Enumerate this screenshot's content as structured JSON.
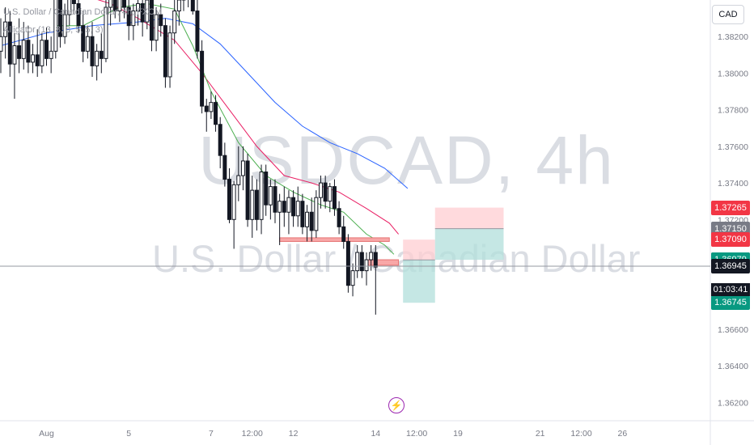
{
  "header": {
    "symbol_title": "U.S. Dollar / Canadian Dollar, 4h, FXCM",
    "indicator": "Alligator (13, 8, 8, 5, 5, 3)"
  },
  "watermark": {
    "ticker": "USDCAD, 4h",
    "name": "U.S. Dollar / Canadian Dollar"
  },
  "currency_badge": "CAD",
  "price_tags": [
    {
      "label": "1.37265",
      "color": "#f23645"
    },
    {
      "label": "1.37150",
      "color": "#787b86"
    },
    {
      "label": "1.37090",
      "color": "#f23645"
    },
    {
      "label": "1.36980",
      "color": "#787b86"
    },
    {
      "label": "1.36979",
      "color": "#089981"
    },
    {
      "label": "1.36945",
      "color": "#131722"
    },
    {
      "label": "1.36745",
      "color": "#089981"
    }
  ],
  "countdown": "01:03:41",
  "colors": {
    "candle": "#131722",
    "jaw": "#2962ff",
    "teeth": "#e91e63",
    "lips": "#4caf50",
    "zone_stroke": "#e57373",
    "zone_fill": "#f8a7a7",
    "profit_zone": "#b2dfdb",
    "loss_zone": "#ffcdd2",
    "event": "#9c27b0"
  },
  "chart_data": {
    "type": "candlestick",
    "symbol": "USDCAD",
    "timeframe": "4h",
    "y_ticks": [
      "1.38200",
      "1.38000",
      "1.37800",
      "1.37600",
      "1.37400",
      "1.37200",
      "1.36800",
      "1.36600",
      "1.36400",
      "1.36200"
    ],
    "ylim": [
      1.361,
      1.384
    ],
    "x_ticks": [
      {
        "label": "Aug",
        "i": 10
      },
      {
        "label": "5",
        "i": 28
      },
      {
        "label": "7",
        "i": 46
      },
      {
        "label": "12:00",
        "i": 55
      },
      {
        "label": "12",
        "i": 64
      },
      {
        "label": "14",
        "i": 82
      },
      {
        "label": "12:00",
        "i": 91
      },
      {
        "label": "19",
        "i": 100
      },
      {
        "label": "21",
        "i": 118
      },
      {
        "label": "12:00",
        "i": 127
      },
      {
        "label": "26",
        "i": 136
      }
    ],
    "candles": [
      [
        1.3812,
        1.383,
        1.38,
        1.382
      ],
      [
        1.382,
        1.3836,
        1.3808,
        1.3828
      ],
      [
        1.3828,
        1.3834,
        1.3798,
        1.3805
      ],
      [
        1.3805,
        1.3822,
        1.3786,
        1.3815
      ],
      [
        1.3815,
        1.383,
        1.38,
        1.3808
      ],
      [
        1.3808,
        1.3828,
        1.3802,
        1.3818
      ],
      [
        1.3818,
        1.3826,
        1.38,
        1.3806
      ],
      [
        1.3806,
        1.3816,
        1.38,
        1.381
      ],
      [
        1.381,
        1.3824,
        1.3798,
        1.3804
      ],
      [
        1.3804,
        1.3822,
        1.38,
        1.3818
      ],
      [
        1.3818,
        1.3825,
        1.3804,
        1.3808
      ],
      [
        1.3808,
        1.382,
        1.38,
        1.3812
      ],
      [
        1.3812,
        1.385,
        1.3808,
        1.3846
      ],
      [
        1.3846,
        1.3852,
        1.3814,
        1.382
      ],
      [
        1.382,
        1.3838,
        1.3816,
        1.3832
      ],
      [
        1.3832,
        1.385,
        1.3826,
        1.3842
      ],
      [
        1.3842,
        1.3848,
        1.3832,
        1.3838
      ],
      [
        1.3838,
        1.3846,
        1.3822,
        1.3826
      ],
      [
        1.3826,
        1.3834,
        1.3806,
        1.3812
      ],
      [
        1.3812,
        1.3826,
        1.3808,
        1.382
      ],
      [
        1.382,
        1.3828,
        1.3798,
        1.3804
      ],
      [
        1.3804,
        1.3816,
        1.3796,
        1.3812
      ],
      [
        1.3812,
        1.3822,
        1.38,
        1.3808
      ],
      [
        1.3808,
        1.384,
        1.3806,
        1.3836
      ],
      [
        1.3836,
        1.385,
        1.3826,
        1.3844
      ],
      [
        1.3844,
        1.385,
        1.383,
        1.3834
      ],
      [
        1.3834,
        1.3846,
        1.3828,
        1.3842
      ],
      [
        1.3842,
        1.3848,
        1.383,
        1.3836
      ],
      [
        1.3836,
        1.3842,
        1.3818,
        1.3826
      ],
      [
        1.3826,
        1.3838,
        1.3818,
        1.3834
      ],
      [
        1.3834,
        1.3846,
        1.3826,
        1.3838
      ],
      [
        1.3838,
        1.3842,
        1.382,
        1.3828
      ],
      [
        1.3828,
        1.3842,
        1.3824,
        1.384
      ],
      [
        1.384,
        1.3844,
        1.3812,
        1.3818
      ],
      [
        1.3818,
        1.3836,
        1.3812,
        1.3832
      ],
      [
        1.3832,
        1.3838,
        1.382,
        1.3826
      ],
      [
        1.3826,
        1.383,
        1.3792,
        1.3798
      ],
      [
        1.3798,
        1.3826,
        1.3792,
        1.3822
      ],
      [
        1.3822,
        1.384,
        1.3816,
        1.3834
      ],
      [
        1.3834,
        1.3846,
        1.3826,
        1.384
      ],
      [
        1.384,
        1.385,
        1.3834,
        1.3846
      ],
      [
        1.3846,
        1.3852,
        1.3836,
        1.3842
      ],
      [
        1.3842,
        1.385,
        1.3832,
        1.3834
      ],
      [
        1.3834,
        1.384,
        1.3808,
        1.3812
      ],
      [
        1.3812,
        1.3818,
        1.3778,
        1.3782
      ],
      [
        1.3782,
        1.3786,
        1.3768,
        1.3779
      ],
      [
        1.3779,
        1.379,
        1.3775,
        1.3784
      ],
      [
        1.3784,
        1.3788,
        1.3768,
        1.3772
      ],
      [
        1.3772,
        1.3776,
        1.3748,
        1.3755
      ],
      [
        1.3755,
        1.3762,
        1.3738,
        1.3742
      ],
      [
        1.3742,
        1.3748,
        1.3718,
        1.372
      ],
      [
        1.372,
        1.3741,
        1.3704,
        1.3739
      ],
      [
        1.3739,
        1.376,
        1.373,
        1.3744
      ],
      [
        1.3744,
        1.376,
        1.3736,
        1.3752
      ],
      [
        1.3752,
        1.3756,
        1.3716,
        1.372
      ],
      [
        1.372,
        1.3744,
        1.371,
        1.3736
      ],
      [
        1.3736,
        1.3742,
        1.3714,
        1.372
      ],
      [
        1.372,
        1.375,
        1.3712,
        1.3746
      ],
      [
        1.3746,
        1.375,
        1.3722,
        1.3728
      ],
      [
        1.3728,
        1.3742,
        1.372,
        1.3738
      ],
      [
        1.3738,
        1.3742,
        1.3718,
        1.3724
      ],
      [
        1.3724,
        1.3734,
        1.3706,
        1.373
      ],
      [
        1.373,
        1.3738,
        1.3716,
        1.3724
      ],
      [
        1.3724,
        1.3736,
        1.3712,
        1.3732
      ],
      [
        1.3732,
        1.3736,
        1.3716,
        1.3722
      ],
      [
        1.3722,
        1.3738,
        1.3716,
        1.373
      ],
      [
        1.373,
        1.3734,
        1.3712,
        1.3716
      ],
      [
        1.3716,
        1.3728,
        1.3708,
        1.3724
      ],
      [
        1.3724,
        1.3732,
        1.3708,
        1.3714
      ],
      [
        1.3714,
        1.3736,
        1.371,
        1.3732
      ],
      [
        1.3732,
        1.3744,
        1.3726,
        1.374
      ],
      [
        1.374,
        1.3744,
        1.3726,
        1.373
      ],
      [
        1.373,
        1.374,
        1.3724,
        1.3738
      ],
      [
        1.3738,
        1.3742,
        1.3722,
        1.3726
      ],
      [
        1.3726,
        1.373,
        1.3712,
        1.3716
      ],
      [
        1.3716,
        1.3722,
        1.3704,
        1.3708
      ],
      [
        1.3708,
        1.3712,
        1.368,
        1.3684
      ],
      [
        1.3684,
        1.3696,
        1.3678,
        1.3692
      ],
      [
        1.3692,
        1.3706,
        1.3688,
        1.3702
      ],
      [
        1.3702,
        1.3706,
        1.3688,
        1.3692
      ],
      [
        1.3692,
        1.3702,
        1.3684,
        1.3698
      ],
      [
        1.3698,
        1.3706,
        1.3692,
        1.3702
      ],
      [
        1.3702,
        1.3706,
        1.3668,
        1.3694
      ]
    ],
    "alligator": {
      "jaw": [
        [
          0,
          1.3815
        ],
        [
          10,
          1.3822
        ],
        [
          20,
          1.3826
        ],
        [
          30,
          1.3828
        ],
        [
          36,
          1.383
        ],
        [
          42,
          1.3827
        ],
        [
          48,
          1.3816
        ],
        [
          54,
          1.38
        ],
        [
          60,
          1.3784
        ],
        [
          66,
          1.3771
        ],
        [
          72,
          1.3762
        ],
        [
          78,
          1.3756
        ],
        [
          84,
          1.3748
        ],
        [
          89,
          1.3737
        ]
      ],
      "teeth": [
        [
          15,
          1.3845
        ],
        [
          24,
          1.3838
        ],
        [
          30,
          1.383
        ],
        [
          38,
          1.3818
        ],
        [
          44,
          1.38
        ],
        [
          50,
          1.378
        ],
        [
          56,
          1.376
        ],
        [
          62,
          1.3744
        ],
        [
          68,
          1.374
        ],
        [
          74,
          1.3735
        ],
        [
          80,
          1.3726
        ],
        [
          85,
          1.3718
        ],
        [
          87,
          1.3712
        ]
      ],
      "lips": [
        [
          12,
          1.3826
        ],
        [
          18,
          1.3826
        ],
        [
          26,
          1.3836
        ],
        [
          32,
          1.3838
        ],
        [
          38,
          1.3835
        ],
        [
          42,
          1.3815
        ],
        [
          46,
          1.379
        ],
        [
          52,
          1.3762
        ],
        [
          58,
          1.3744
        ],
        [
          64,
          1.3735
        ],
        [
          70,
          1.3728
        ],
        [
          75,
          1.3724
        ],
        [
          80,
          1.3712
        ],
        [
          84,
          1.3706
        ],
        [
          86,
          1.3701
        ]
      ]
    },
    "levels": [
      {
        "type": "zone",
        "i_start": 61,
        "i_end": 85,
        "y_top": 1.371,
        "y_bottom": 1.3708
      },
      {
        "type": "zone",
        "i_start": 80,
        "i_end": 87,
        "y_top": 1.3698,
        "y_bottom": 1.3695
      }
    ],
    "positions": [
      {
        "i_start": 88,
        "i_end": 95,
        "entry": 1.36979,
        "stop": 1.3709,
        "target": 1.36745,
        "side": "short"
      },
      {
        "i_start": 95,
        "i_end": 110,
        "entry": 1.3715,
        "stop": 1.37265,
        "target": 1.3698,
        "side": "short"
      }
    ],
    "last_price": 1.36945
  }
}
